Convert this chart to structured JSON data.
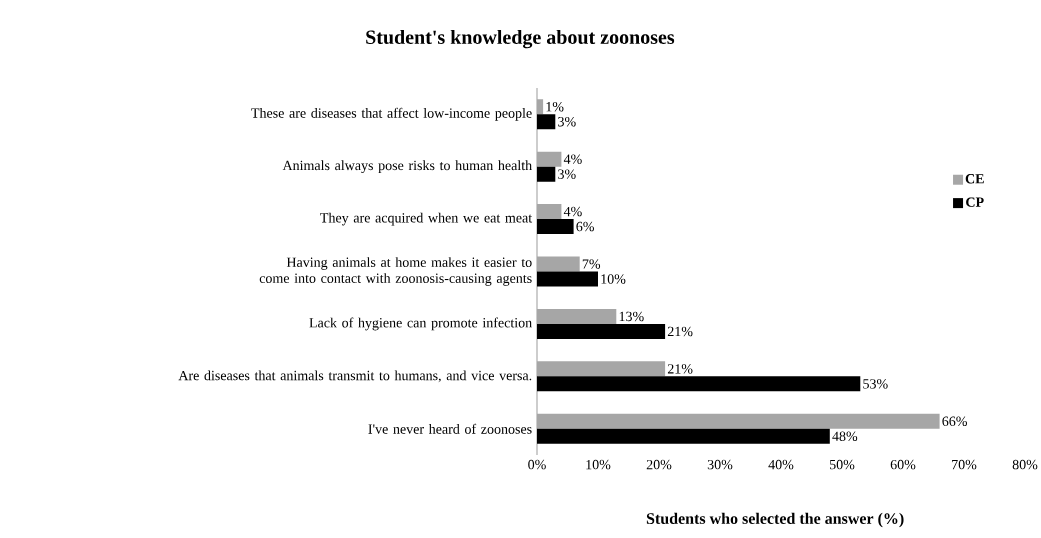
{
  "chart_data": {
    "type": "bar",
    "orientation": "horizontal",
    "title": "Student's knowledge about zoonoses",
    "xlabel": "Students who selected the answer (%)",
    "categories": [
      "These are diseases that affect low-income people",
      "Animals always pose risks to human health",
      "They are acquired when we eat meat",
      "Having animals at home makes it easier to come into contact with zoonosis-causing agents",
      "Lack of hygiene can promote infection",
      "Are diseases that animals transmit to humans, and vice versa.",
      "I've never heard of zoonoses"
    ],
    "series": [
      {
        "name": "CE",
        "color": "#a6a6a6",
        "values": [
          1,
          4,
          4,
          7,
          13,
          21,
          66
        ],
        "value_labels": [
          "1%",
          "4%",
          "4%",
          "7%",
          "13%",
          "21%",
          "66%"
        ]
      },
      {
        "name": "CP",
        "color": "#000000",
        "values": [
          3,
          3,
          6,
          10,
          21,
          53,
          48
        ],
        "value_labels": [
          "3%",
          "3%",
          "6%",
          "10%",
          "21%",
          "53%",
          "48%"
        ]
      }
    ],
    "xlim": [
      0,
      80
    ],
    "xticks": [
      {
        "value": 0,
        "label": "0%"
      },
      {
        "value": 10,
        "label": "10%"
      },
      {
        "value": 20,
        "label": "20%"
      },
      {
        "value": 30,
        "label": "30%"
      },
      {
        "value": 40,
        "label": "40%"
      },
      {
        "value": 50,
        "label": "50%"
      },
      {
        "value": 60,
        "label": "60%"
      },
      {
        "value": 70,
        "label": "70%"
      },
      {
        "value": 80,
        "label": "80%"
      }
    ],
    "legend": "right",
    "grid": false
  }
}
